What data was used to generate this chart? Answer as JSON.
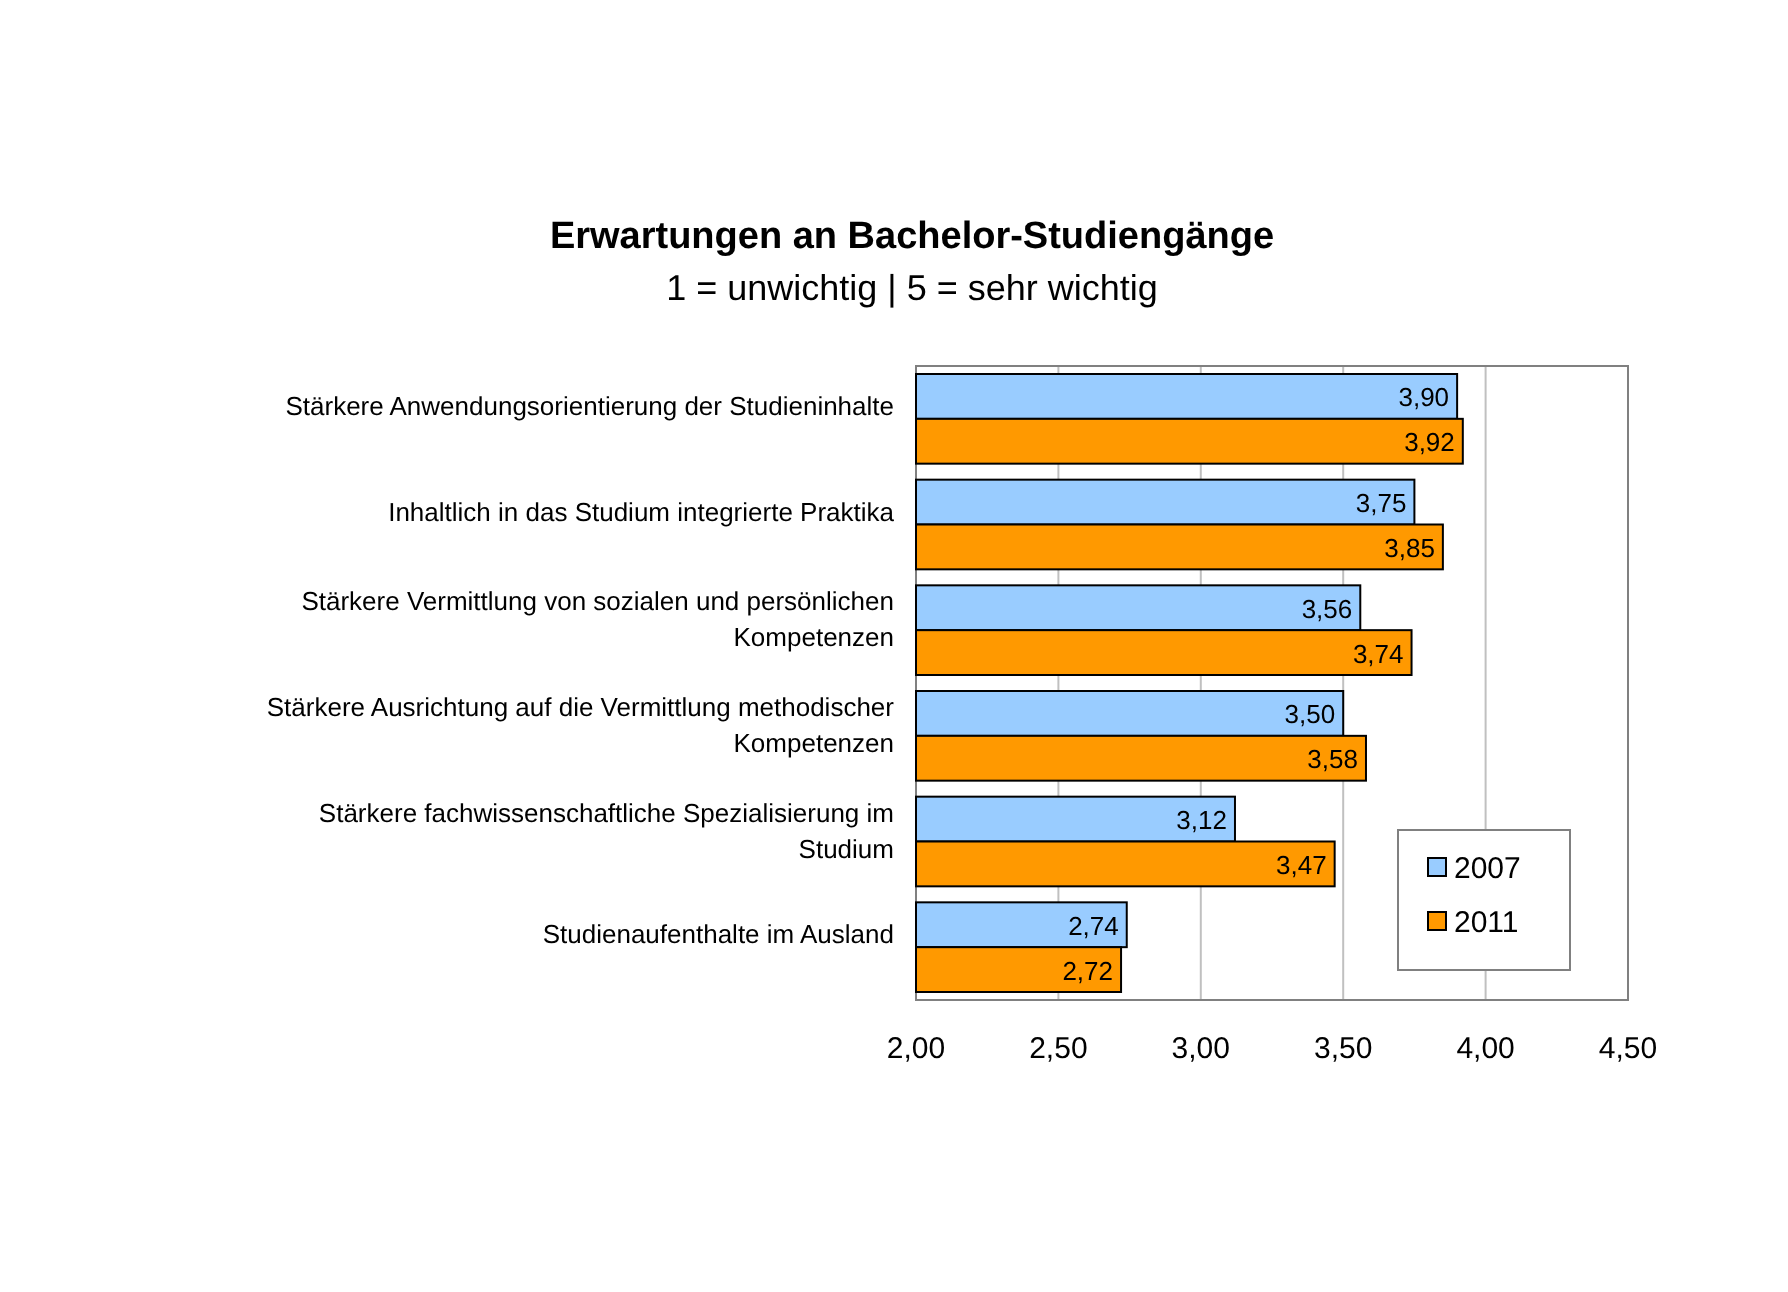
{
  "chart_data": {
    "type": "bar",
    "orientation": "horizontal",
    "title": "Erwartungen an Bachelor-Studiengänge",
    "subtitle": "1 = unwichtig | 5 = sehr wichtig",
    "categories": [
      "Stärkere Anwendungsorientierung der Studieninhalte",
      "Inhaltlich in das Studium integrierte Praktika",
      "Stärkere Vermittlung von sozialen und persönlichen Kompetenzen",
      "Stärkere Ausrichtung auf die Vermittlung methodischer Kompetenzen",
      "Stärkere fachwissenschaftliche Spezialisierung im Studium",
      "Studienaufenthalte im Ausland"
    ],
    "series": [
      {
        "name": "2007",
        "color": "#99ccff",
        "values": [
          3.9,
          3.75,
          3.56,
          3.5,
          3.12,
          2.74
        ],
        "value_labels": [
          "3,90",
          "3,75",
          "3,56",
          "3,50",
          "3,12",
          "2,74"
        ]
      },
      {
        "name": "2011",
        "color": "#ff9900",
        "values": [
          3.92,
          3.85,
          3.74,
          3.58,
          3.47,
          2.72
        ],
        "value_labels": [
          "3,92",
          "3,85",
          "3,74",
          "3,58",
          "3,47",
          "2,72"
        ]
      }
    ],
    "xlim": [
      2,
      4.5
    ],
    "xticks": [
      {
        "value": 2,
        "label": "2,00"
      },
      {
        "value": 2.5,
        "label": "2,50"
      },
      {
        "value": 3,
        "label": "3,00"
      },
      {
        "value": 3.5,
        "label": "3,50"
      },
      {
        "value": 4,
        "label": "4,00"
      },
      {
        "value": 4.5,
        "label": "4,50"
      }
    ],
    "grid": "x",
    "legend": "bottom right"
  }
}
